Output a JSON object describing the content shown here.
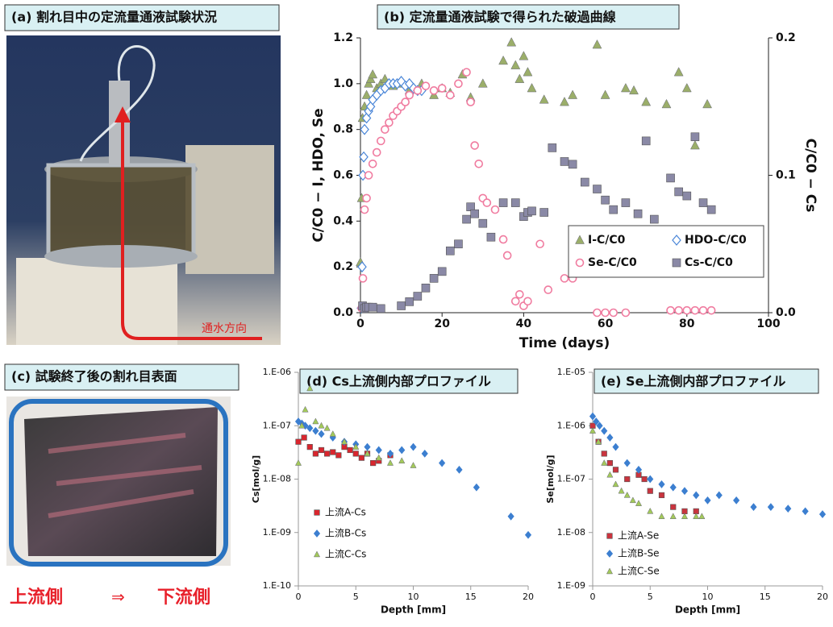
{
  "photos": {
    "a_title": "(a) 割れ目中の定流量通液試験状況",
    "a_arrow": "通水方向",
    "c_title": "(c) 試験終了後の割れ目表面",
    "c_left": "上流側",
    "c_arrow": "⇒",
    "c_right": "下流側"
  },
  "chart_data": [
    {
      "type": "scatter",
      "title": "(b) 定流量通液試験で得られた破過曲線",
      "x_label": "Time (days)",
      "y_label": "C/C0 − I, HDO, Se",
      "y2_label": "C/C0 − Cs",
      "xlim": [
        0,
        100
      ],
      "xticks": [
        0,
        20,
        40,
        60,
        80,
        100
      ],
      "ylim": [
        0,
        1.2
      ],
      "yticks": [
        {
          "value": 0,
          "label": "0.0"
        },
        0.2,
        0.4,
        0.6,
        0.8,
        {
          "value": 1,
          "label": "1.0"
        },
        1.2
      ],
      "y2lim": [
        0,
        0.2
      ],
      "y2ticks": [
        {
          "value": 0,
          "label": "0.0"
        },
        0.1,
        0.2
      ],
      "legend": "lower right",
      "grid": false,
      "series": [
        {
          "name": "I-C/C0",
          "color": "#9bae6a",
          "marker": "triangle",
          "x": [
            0,
            0.3,
            0.5,
            1,
            1.5,
            2,
            2.5,
            3,
            4,
            5,
            6,
            8,
            10,
            12,
            15,
            18,
            20,
            22,
            25,
            27,
            30,
            35,
            37,
            38,
            39,
            40,
            41,
            42,
            45,
            50,
            52,
            58,
            60,
            65,
            67,
            70,
            75,
            78,
            80,
            82,
            85
          ],
          "values": [
            0.22,
            0.5,
            0.85,
            0.9,
            0.95,
            1.0,
            1.02,
            1.04,
            0.98,
            1.0,
            1.02,
            0.99,
            1.0,
            0.97,
            1.0,
            0.95,
            0.98,
            0.96,
            1.04,
            0.94,
            1.0,
            1.1,
            1.18,
            1.08,
            1.02,
            1.12,
            1.05,
            0.98,
            0.93,
            0.92,
            0.95,
            1.17,
            0.95,
            0.98,
            0.97,
            0.92,
            0.91,
            1.05,
            0.98,
            0.73,
            0.91
          ]
        },
        {
          "name": "HDO-C/C0",
          "color": "#4a86d8",
          "marker": "diamond",
          "x": [
            0.2,
            0.4,
            0.6,
            0.8,
            1,
            1.5,
            2,
            2.5,
            3,
            4,
            5,
            6,
            7,
            8,
            9,
            10,
            11,
            12,
            13,
            14,
            15
          ],
          "values": [
            0.02,
            0.2,
            0.6,
            0.68,
            0.8,
            0.85,
            0.88,
            0.9,
            0.93,
            0.95,
            0.97,
            0.98,
            1.0,
            1.0,
            1.0,
            1.01,
            0.99,
            1.0,
            0.98,
            0.97,
            0.97
          ]
        },
        {
          "name": "Se-C/C0",
          "color": "#f07ca0",
          "marker": "circle",
          "x": [
            0.3,
            0.6,
            1,
            1.5,
            2,
            3,
            4,
            5,
            6,
            7,
            8,
            9,
            10,
            11,
            12,
            14,
            16,
            18,
            20,
            22,
            24,
            26,
            27,
            28,
            29,
            30,
            31,
            33,
            35,
            36,
            38,
            39,
            40,
            41,
            44,
            46,
            50,
            52,
            58,
            60,
            62,
            65,
            76,
            78,
            80,
            82,
            84,
            86
          ],
          "values": [
            0.02,
            0.15,
            0.45,
            0.5,
            0.6,
            0.65,
            0.7,
            0.75,
            0.8,
            0.83,
            0.86,
            0.88,
            0.9,
            0.92,
            0.95,
            0.97,
            0.99,
            0.97,
            0.98,
            0.95,
            1.0,
            1.05,
            0.92,
            0.73,
            0.65,
            0.5,
            0.48,
            0.45,
            0.32,
            0.25,
            0.05,
            0.08,
            0.03,
            0.05,
            0.3,
            0.1,
            0.15,
            0.15,
            0,
            0,
            0,
            0,
            0.01,
            0.01,
            0.01,
            0.01,
            0.01,
            0.01
          ]
        },
        {
          "name": "Cs-C/C0",
          "color": "#8a89a6",
          "marker": "square",
          "axis": "y2",
          "x": [
            0.5,
            1,
            1.5,
            2,
            3,
            5,
            10,
            12,
            14,
            16,
            18,
            20,
            22,
            24,
            26,
            27,
            28,
            30,
            32,
            35,
            38,
            40,
            41,
            42,
            45,
            47,
            50,
            52,
            55,
            58,
            60,
            62,
            65,
            68,
            70,
            72,
            76,
            78,
            80,
            82,
            84,
            86
          ],
          "values": [
            0.005,
            0.003,
            0.004,
            0.004,
            0.004,
            0.003,
            0.005,
            0.008,
            0.012,
            0.018,
            0.025,
            0.03,
            0.045,
            0.05,
            0.068,
            0.077,
            0.072,
            0.065,
            0.055,
            0.08,
            0.08,
            0.07,
            0.073,
            0.074,
            0.073,
            0.12,
            0.11,
            0.108,
            0.095,
            0.09,
            0.082,
            0.075,
            0.08,
            0.072,
            0.125,
            0.068,
            0.098,
            0.088,
            0.085,
            0.128,
            0.08,
            0.075
          ]
        }
      ]
    },
    {
      "type": "scatter",
      "title": "(d) Cs上流側内部プロファイル",
      "x_label": "Depth [mm]",
      "y_label": "Cs[mol/g]",
      "log_y": true,
      "xlim": [
        0,
        20
      ],
      "xticks": [
        0,
        5,
        10,
        15,
        20
      ],
      "ylim": [
        1e-10,
        1e-06
      ],
      "yticks": [
        {
          "value": 1e-10,
          "label": "1.E-10"
        },
        {
          "value": 1e-09,
          "label": "1.E-09"
        },
        {
          "value": 1e-08,
          "label": "1.E-08"
        },
        {
          "value": 1e-07,
          "label": "1.E-07"
        },
        {
          "value": 1e-06,
          "label": "1.E-06"
        }
      ],
      "legend": "lower left",
      "grid": false,
      "series": [
        {
          "name": "上流A-Cs",
          "color": "#d9262e",
          "marker": "square",
          "x": [
            0,
            0.5,
            1,
            1.5,
            2,
            2.5,
            3,
            3.5,
            4,
            4.5,
            5,
            5.5,
            6,
            6.5,
            7,
            8
          ],
          "values": [
            5e-08,
            6e-08,
            4e-08,
            3e-08,
            3.5e-08,
            3e-08,
            3.2e-08,
            2.8e-08,
            4e-08,
            3.5e-08,
            3e-08,
            2.5e-08,
            3e-08,
            2e-08,
            2.2e-08,
            2.8e-08
          ]
        },
        {
          "name": "上流B-Cs",
          "color": "#3c7fd0",
          "marker": "diamond",
          "x": [
            0,
            0.3,
            0.6,
            1,
            1.5,
            2,
            3,
            4,
            5,
            6,
            7,
            8,
            9,
            10,
            11,
            12.5,
            14,
            15.5,
            18.5,
            20
          ],
          "values": [
            1.2e-07,
            1.1e-07,
            1e-07,
            9e-08,
            8e-08,
            7e-08,
            6e-08,
            5e-08,
            4.5e-08,
            4e-08,
            3.5e-08,
            3e-08,
            3.5e-08,
            4e-08,
            3e-08,
            2e-08,
            1.5e-08,
            7e-09,
            2e-09,
            9e-10
          ]
        },
        {
          "name": "上流C-Cs",
          "color": "#a3c95a",
          "marker": "triangle",
          "x": [
            0,
            0.3,
            0.6,
            1,
            1.5,
            2,
            2.5,
            3,
            4,
            5,
            6,
            7,
            8,
            9,
            10
          ],
          "values": [
            2e-08,
            1e-07,
            2e-07,
            5e-07,
            1.2e-07,
            1e-07,
            9e-08,
            7e-08,
            5e-08,
            4e-08,
            3e-08,
            2.5e-08,
            2e-08,
            2.2e-08,
            1.8e-08
          ]
        }
      ]
    },
    {
      "type": "scatter",
      "title": "(e) Se上流側内部プロファイル",
      "x_label": "Depth [mm]",
      "y_label": "Se[mol/g]",
      "log_y": true,
      "xlim": [
        0,
        20
      ],
      "xticks": [
        0,
        5,
        10,
        15,
        20
      ],
      "ylim": [
        1e-09,
        1e-05
      ],
      "yticks": [
        {
          "value": 1e-09,
          "label": "1.E-09"
        },
        {
          "value": 1e-08,
          "label": "1.E-08"
        },
        {
          "value": 1e-07,
          "label": "1.E-07"
        },
        {
          "value": 1e-06,
          "label": "1.E-06"
        },
        {
          "value": 1e-05,
          "label": "1.E-05"
        }
      ],
      "legend": "lower left",
      "grid": false,
      "series": [
        {
          "name": "上流A-Se",
          "color": "#c9343e",
          "marker": "square",
          "x": [
            0,
            0.5,
            1,
            1.5,
            2,
            3,
            4,
            4.5,
            5,
            6,
            7,
            8,
            9
          ],
          "values": [
            1e-06,
            5e-07,
            3e-07,
            2e-07,
            1.5e-07,
            1e-07,
            1.2e-07,
            1e-07,
            6e-08,
            5e-08,
            3e-08,
            2.5e-08,
            2.5e-08
          ]
        },
        {
          "name": "上流B-Se",
          "color": "#3c7fd0",
          "marker": "diamond",
          "x": [
            0,
            0.3,
            0.6,
            1,
            1.5,
            2,
            3,
            4,
            5,
            6,
            7,
            8,
            9,
            10,
            11,
            12.5,
            14,
            15.5,
            17,
            18.5,
            20
          ],
          "values": [
            1.5e-06,
            1.2e-06,
            1e-06,
            8e-07,
            6e-07,
            4e-07,
            2e-07,
            1.5e-07,
            1e-07,
            8e-08,
            7e-08,
            6e-08,
            5e-08,
            4e-08,
            5e-08,
            4e-08,
            3e-08,
            3e-08,
            2.8e-08,
            2.5e-08,
            2.2e-08
          ]
        },
        {
          "name": "上流C-Se",
          "color": "#a3c95a",
          "marker": "triangle",
          "x": [
            0,
            0.5,
            1,
            1.5,
            2,
            2.5,
            3,
            3.5,
            4,
            5,
            6,
            7,
            8,
            9,
            9.5
          ],
          "values": [
            8e-07,
            5e-07,
            2e-07,
            1.2e-07,
            8e-08,
            6e-08,
            5e-08,
            4e-08,
            3.5e-08,
            2.5e-08,
            2e-08,
            2e-08,
            2e-08,
            2e-08,
            2e-08
          ]
        }
      ]
    }
  ]
}
